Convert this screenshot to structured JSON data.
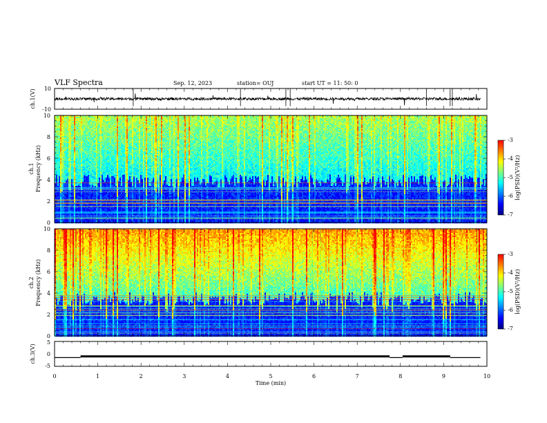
{
  "header": {
    "title": "VLF Spectra",
    "date": "Sep. 12, 2023",
    "station": "station= OUJ",
    "start": "start  UT =   11: 50: 0"
  },
  "colors": {
    "colormap": [
      "#000080",
      "#0000ff",
      "#0080ff",
      "#00ffff",
      "#80ff80",
      "#ffff00",
      "#ff8000",
      "#ff0000",
      "#ffffff"
    ],
    "trace": "#000000",
    "frame": "#000000"
  },
  "chart_data": [
    {
      "type": "line",
      "panel": "ch1-waveform",
      "ylabel": "ch.1(V)",
      "ylim": [
        -10,
        10
      ],
      "yticks": [
        "10",
        "-10"
      ],
      "xlim": [
        0,
        10
      ],
      "grid": false
    },
    {
      "type": "heatmap",
      "panel": "ch1-spectrogram",
      "ylabel_line1": "ch.1",
      "ylabel_line2": "Frequency (kHz)",
      "ylim": [
        0,
        10
      ],
      "yticks": [
        "0",
        "2",
        "4",
        "6",
        "8",
        "10"
      ],
      "xlim": [
        0,
        10
      ],
      "colorbar": {
        "label": "log(PSD)(V²/Hz)",
        "range": [
          -7,
          -3
        ],
        "ticks": [
          "-3",
          "-4",
          "-5",
          "-6",
          "-7"
        ]
      }
    },
    {
      "type": "heatmap",
      "panel": "ch2-spectrogram",
      "ylabel_line1": "ch.2",
      "ylabel_line2": "Frequency (kHz)",
      "ylim": [
        0,
        10
      ],
      "yticks": [
        "0",
        "2",
        "4",
        "6",
        "8",
        "10"
      ],
      "xlim": [
        0,
        10
      ],
      "colorbar": {
        "label": "log(PSD)(V²/Hz)",
        "range": [
          -7,
          -3
        ],
        "ticks": [
          "-3",
          "-4",
          "-5",
          "-6",
          "-7"
        ]
      }
    },
    {
      "type": "line",
      "panel": "ch3-signal",
      "ylabel": "ch.3(V)",
      "ylim": [
        -5,
        5
      ],
      "yticks": [
        "5",
        "0",
        "-5"
      ],
      "xlim": [
        0,
        10
      ],
      "xticks": [
        "0",
        "1",
        "2",
        "3",
        "4",
        "5",
        "6",
        "7",
        "8",
        "9",
        "10"
      ],
      "xlabel": "Time (min)",
      "segments": [
        [
          0,
          0.6,
          -1.5
        ],
        [
          0.6,
          7.75,
          -1.0
        ],
        [
          7.75,
          8.05,
          -1.5
        ],
        [
          8.05,
          9.15,
          -1.0
        ],
        [
          9.15,
          9.85,
          -1.5
        ]
      ]
    }
  ]
}
